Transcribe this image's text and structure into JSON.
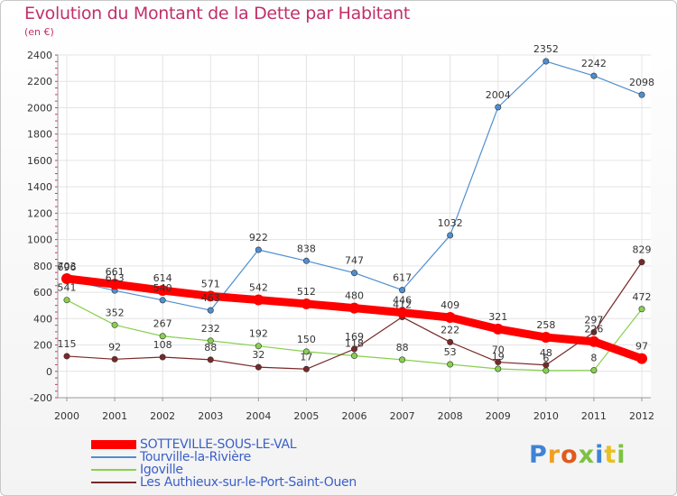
{
  "title": "Evolution du Montant de la Dette par Habitant",
  "subtitle": "(en €)",
  "logo": "Proxiti",
  "chart_data": {
    "type": "line",
    "title": "Evolution du Montant de la Dette par Habitant",
    "ylabel": "(en €)",
    "x": [
      2000,
      2001,
      2002,
      2003,
      2004,
      2005,
      2006,
      2007,
      2008,
      2009,
      2010,
      2011,
      2012
    ],
    "ylim": [
      -200,
      2400
    ],
    "yticks": [
      -200,
      0,
      200,
      400,
      600,
      800,
      1000,
      1200,
      1400,
      1600,
      1800,
      2000,
      2200,
      2400
    ],
    "grid": true,
    "legend": "bottom-left",
    "series": [
      {
        "name": "SOTTEVILLE-SOUS-LE-VAL",
        "color": "#ff0000",
        "values": [
          703,
          661,
          614,
          571,
          542,
          512,
          480,
          446,
          409,
          321,
          258,
          226,
          97
        ]
      },
      {
        "name": "Tourville-la-Rivière",
        "color": "#4f8fd0",
        "values": [
          696,
          613,
          540,
          463,
          922,
          838,
          747,
          617,
          1032,
          2004,
          2352,
          2242,
          2098
        ]
      },
      {
        "name": "Igoville",
        "color": "#88d050",
        "values": [
          541,
          352,
          267,
          232,
          192,
          150,
          118,
          88,
          53,
          19,
          6,
          8,
          472
        ]
      },
      {
        "name": "Les Authieux-sur-le-Port-Saint-Ouen",
        "color": "#7a2828",
        "values": [
          115,
          92,
          108,
          88,
          32,
          17,
          169,
          412,
          222,
          70,
          48,
          297,
          829
        ]
      }
    ]
  }
}
